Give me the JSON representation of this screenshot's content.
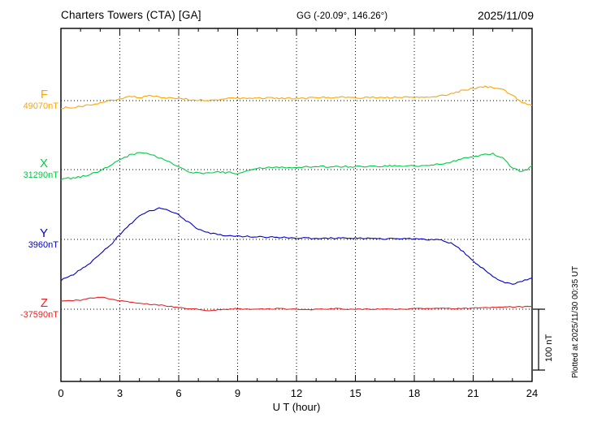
{
  "header": {
    "station": "Charters Towers (CTA)  [GA]",
    "coords": "GG (-20.09°, 146.26°)",
    "date": "2025/11/09"
  },
  "axis": {
    "xlabel": "U T (hour)",
    "ticks": [
      "0",
      "3",
      "6",
      "9",
      "12",
      "15",
      "18",
      "21",
      "24"
    ]
  },
  "scale_bar": {
    "label": "100 nT",
    "nT": 100
  },
  "footer_note": "Plotted at 2025/11/30 00:35 UT",
  "chart_data": {
    "type": "line",
    "title": "Charters Towers (CTA) [GA] magnetogram",
    "date": "2025/11/09",
    "xlabel": "U T (hour)",
    "x_range": [
      0,
      24
    ],
    "x_step_hours": 0.5,
    "gridlines_hours": [
      3,
      6,
      9,
      12,
      15,
      18,
      21
    ],
    "scale_bar_nT": 100,
    "series": [
      {
        "name": "F",
        "baseline_label": "49070nT",
        "baseline_nT": 49070,
        "color": "#ffa500",
        "offsets_nT": [
          -12,
          -11,
          -10,
          -7,
          -4,
          0,
          3,
          7,
          5,
          8,
          6,
          4,
          4,
          2,
          1,
          0,
          2,
          3,
          4,
          4,
          4,
          4,
          4,
          4,
          4,
          4,
          5,
          5,
          5,
          5,
          5,
          5,
          5,
          5,
          5,
          6,
          6,
          6,
          7,
          8,
          13,
          17,
          20,
          23,
          22,
          18,
          9,
          -3,
          -8
        ]
      },
      {
        "name": "X",
        "baseline_label": "31290nT",
        "baseline_nT": 31290,
        "color": "#00cc44",
        "offsets_nT": [
          -16,
          -14,
          -12,
          -8,
          -2,
          6,
          16,
          24,
          28,
          25,
          20,
          12,
          4,
          -4,
          -6,
          -5,
          -4,
          -5,
          -6,
          -2,
          2,
          3,
          4,
          4,
          4,
          5,
          5,
          5,
          5,
          5,
          5,
          5,
          5,
          6,
          6,
          6,
          6,
          7,
          8,
          10,
          14,
          18,
          22,
          24,
          26,
          20,
          2,
          -4,
          5
        ]
      },
      {
        "name": "Y",
        "baseline_label": "3960nT",
        "baseline_nT": 3960,
        "color": "#0000cc",
        "offsets_nT": [
          -67,
          -60,
          -50,
          -38,
          -24,
          -10,
          8,
          24,
          38,
          46,
          51,
          48,
          40,
          28,
          17,
          11,
          8,
          6,
          5,
          5,
          4,
          4,
          3,
          3,
          2,
          2,
          2,
          2,
          2,
          2,
          2,
          2,
          1,
          1,
          1,
          1,
          1,
          0,
          0,
          -2,
          -8,
          -20,
          -35,
          -48,
          -60,
          -70,
          -74,
          -68,
          -63
        ]
      },
      {
        "name": "Z",
        "baseline_label": "-37590nT",
        "baseline_nT": -37590,
        "color": "#ee2222",
        "offsets_nT": [
          13,
          14,
          15,
          18,
          20,
          17,
          14,
          12,
          10,
          8,
          7,
          5,
          3,
          1,
          0,
          -2,
          -1,
          0,
          1,
          0,
          0,
          0,
          1,
          0,
          0,
          -1,
          0,
          0,
          1,
          0,
          0,
          0,
          0,
          1,
          0,
          0,
          1,
          1,
          1,
          1,
          1,
          1,
          2,
          2,
          3,
          3,
          4,
          4,
          5
        ]
      }
    ]
  }
}
